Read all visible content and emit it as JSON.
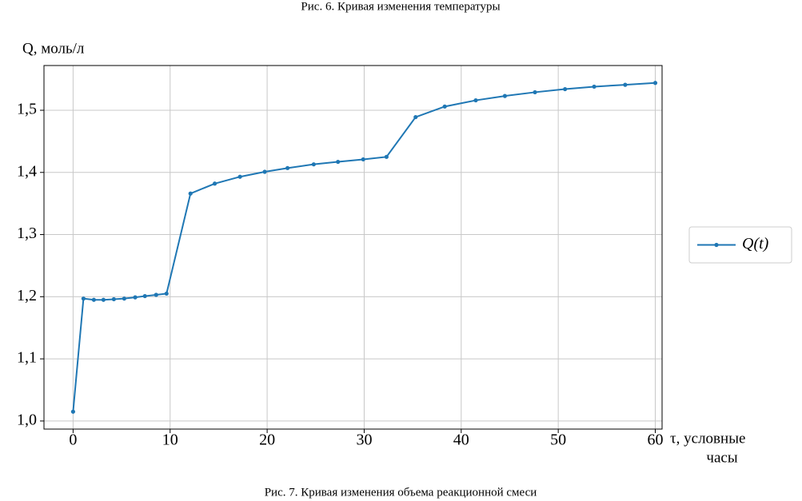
{
  "captions": {
    "top": "Рис. 6. Кривая изменения температуры",
    "bottom": "Рис. 7. Кривая изменения объема реакционной смеси"
  },
  "chart_data": {
    "type": "line",
    "ylabel": "Q, моль/л",
    "xlabel": [
      "τ, условные",
      "часы"
    ],
    "x": [
      0,
      1.07,
      2.14,
      3.13,
      4.2,
      5.27,
      6.4,
      7.4,
      8.56,
      9.63,
      12.1,
      14.6,
      17.2,
      19.75,
      22.1,
      24.8,
      27.3,
      29.9,
      32.3,
      35.3,
      38.3,
      41.5,
      44.5,
      47.6,
      50.7,
      53.7,
      56.9,
      60
    ],
    "series": [
      {
        "name": "Q(t)",
        "color": "#1f77b4",
        "values": [
          1.015,
          1.197,
          1.195,
          1.195,
          1.196,
          1.197,
          1.199,
          1.201,
          1.203,
          1.205,
          1.366,
          1.382,
          1.393,
          1.401,
          1.407,
          1.413,
          1.417,
          1.421,
          1.425,
          1.489,
          1.506,
          1.516,
          1.523,
          1.529,
          1.534,
          1.538,
          1.541,
          1.544
        ]
      }
    ],
    "xlim": [
      -3,
      60.7
    ],
    "ylim": [
      0.987,
      1.572
    ],
    "xticks": [
      0,
      10,
      20,
      30,
      40,
      50,
      60
    ],
    "yticks": [
      {
        "value": 1.0,
        "label": "1,0"
      },
      {
        "value": 1.1,
        "label": "1,1"
      },
      {
        "value": 1.2,
        "label": "1,2"
      },
      {
        "value": 1.3,
        "label": "1,3"
      },
      {
        "value": 1.4,
        "label": "1,4"
      },
      {
        "value": 1.5,
        "label": "1,5"
      }
    ],
    "grid": true,
    "legend": "right"
  }
}
